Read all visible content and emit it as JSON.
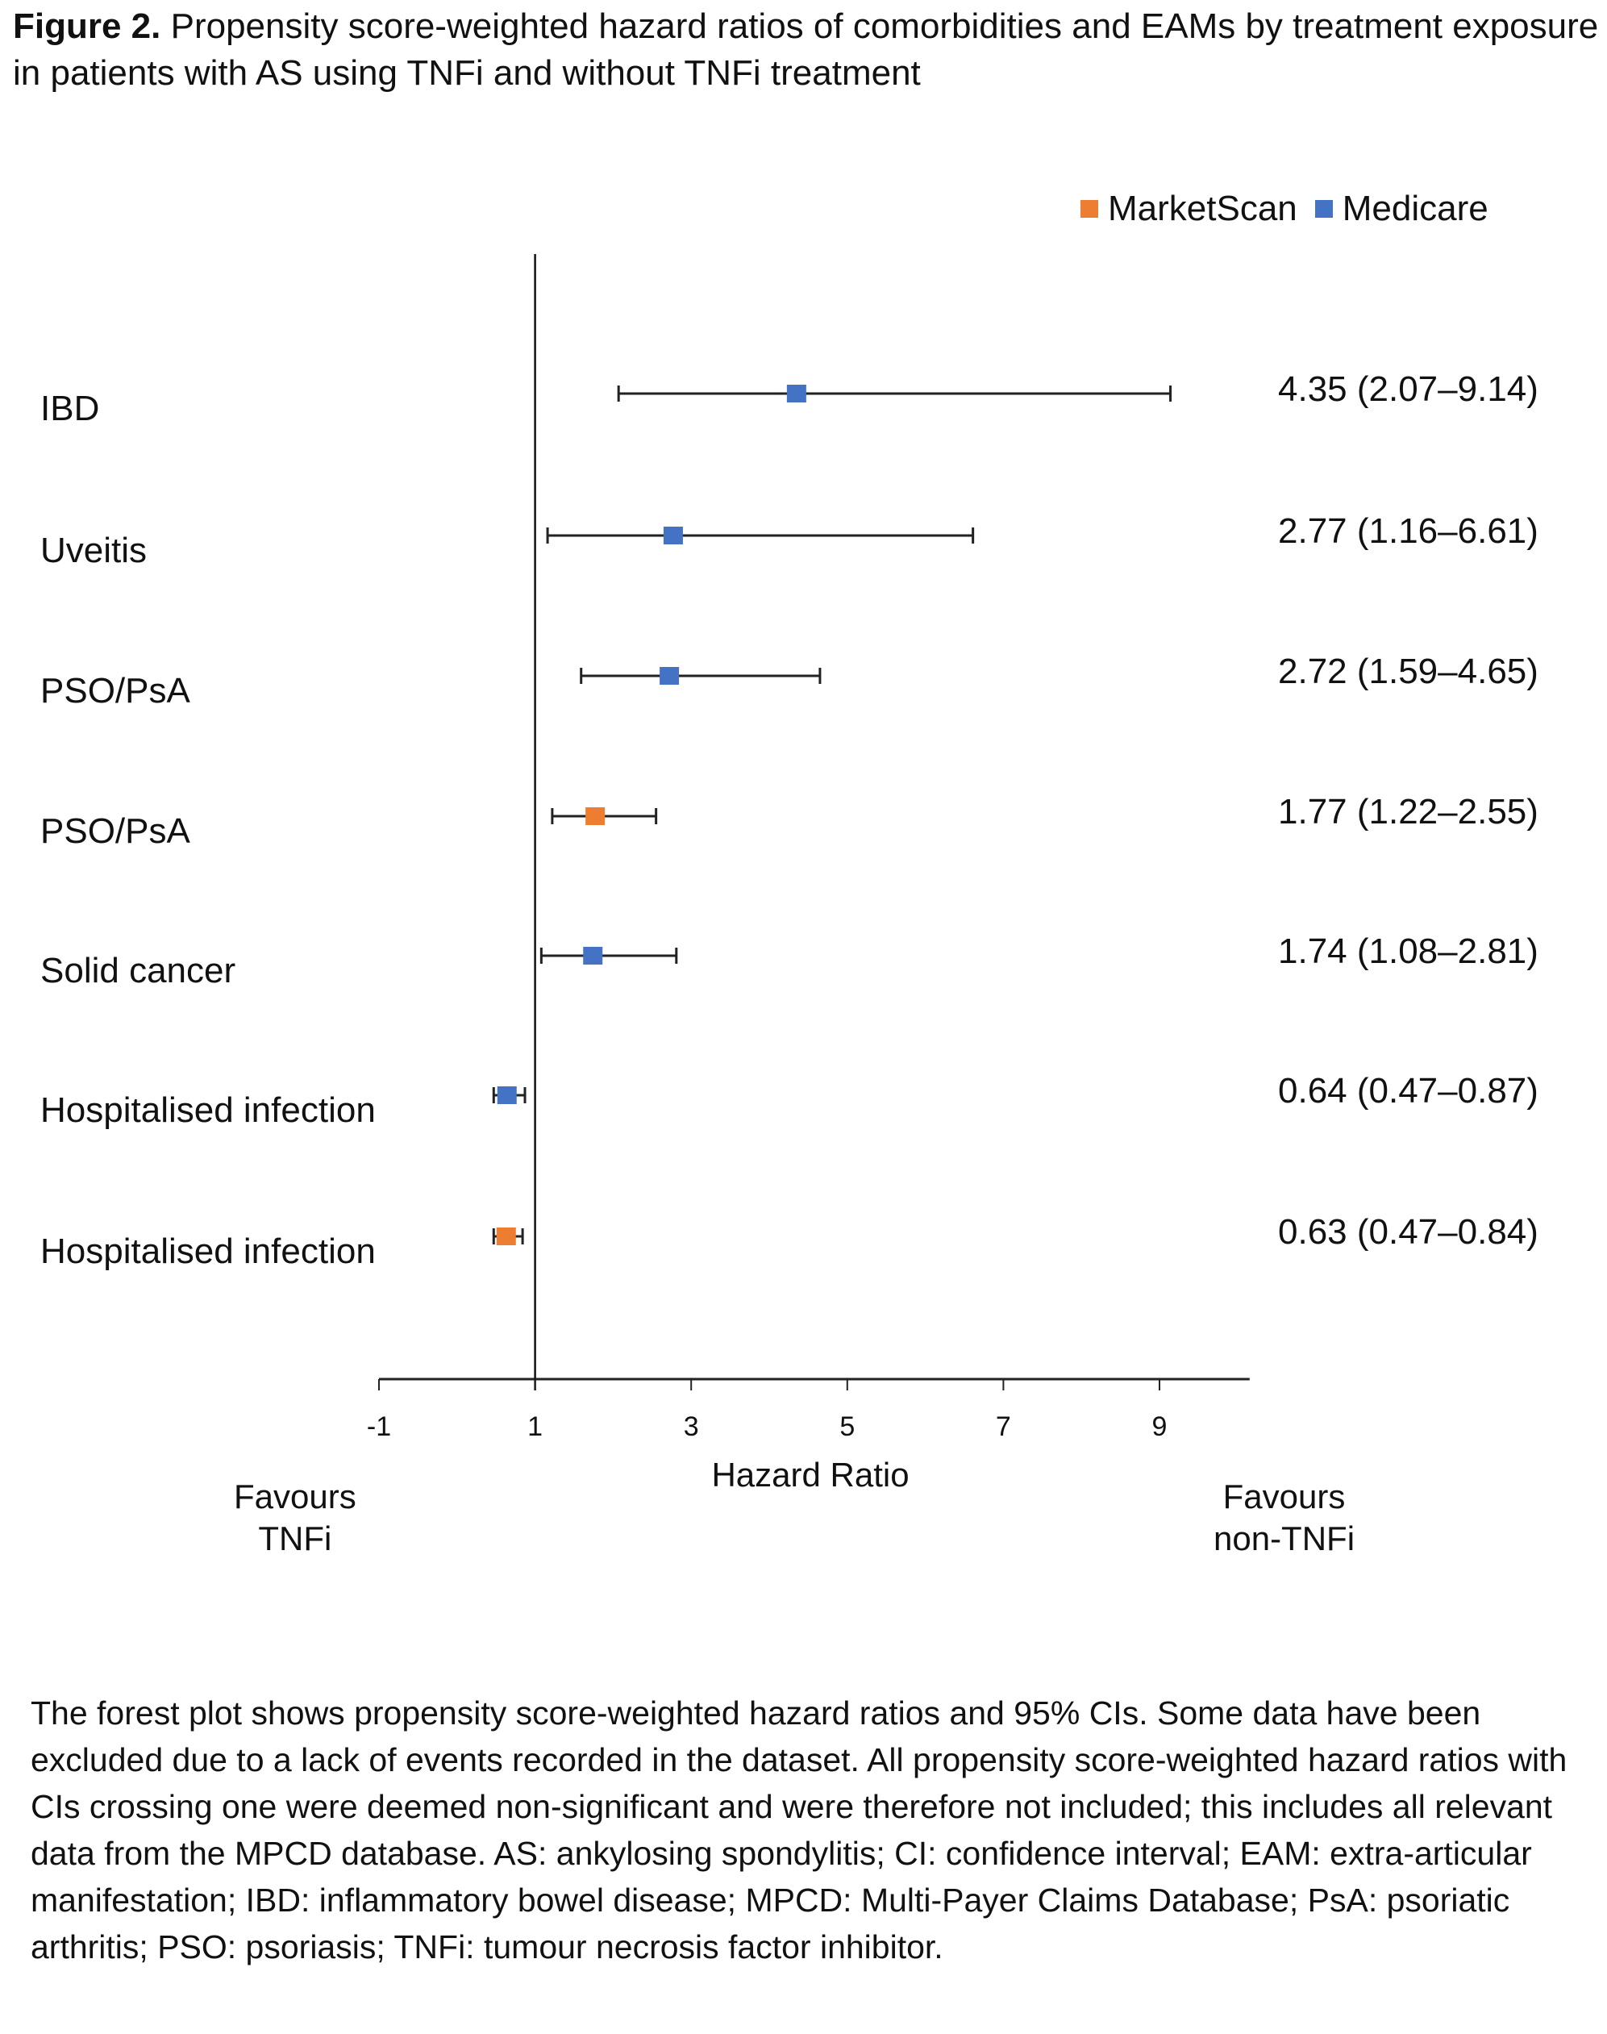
{
  "figure": {
    "label": "Figure 2.",
    "title": "Propensity score-weighted hazard ratios of comorbidities and EAMs by treatment exposure in patients with AS using TNFi and without TNFi treatment",
    "favours_left": [
      "Favours",
      "TNFi"
    ],
    "favours_right": [
      "Favours",
      "non-TNFi"
    ],
    "caption": "The forest plot shows propensity score-weighted hazard ratios and 95% CIs. Some data have been excluded due to a lack of events recorded in the dataset. All propensity score-weighted hazard ratios with CIs crossing one were deemed non-significant and were therefore not included; this includes all relevant data from the MPCD database. AS: ankylosing spondylitis; CI: confidence interval; EAM: extra-articular manifestation; IBD: inflammatory bowel disease; MPCD: Multi-Payer Claims Database; PsA: psoriatic arthritis; PSO: psoriasis; TNFi: tumour necrosis factor inhibitor."
  },
  "chart_data": {
    "type": "scatter",
    "subtype": "forest",
    "title": "Propensity score-weighted hazard ratios of comorbidities and EAMs by treatment exposure in patients with AS using TNFi and without TNFi treatment",
    "xlabel": "Hazard Ratio",
    "ylabel": "",
    "xlim": [
      -1,
      10
    ],
    "xticks": [
      -1,
      1,
      3,
      5,
      7,
      9
    ],
    "reference_line": 1,
    "grid": false,
    "legend_position": "top-right",
    "series": [
      {
        "name": "MarketScan",
        "color": "#ED7D31"
      },
      {
        "name": "Medicare",
        "color": "#4472C4"
      }
    ],
    "rows": [
      {
        "label": "IBD",
        "series": "Medicare",
        "hr": 4.35,
        "lo": 2.07,
        "hi": 9.14,
        "text": "4.35 (2.07–9.14)"
      },
      {
        "label": "Uveitis",
        "series": "Medicare",
        "hr": 2.77,
        "lo": 1.16,
        "hi": 6.61,
        "text": "2.77 (1.16–6.61)"
      },
      {
        "label": "PSO/PsA",
        "series": "Medicare",
        "hr": 2.72,
        "lo": 1.59,
        "hi": 4.65,
        "text": "2.72 (1.59–4.65)"
      },
      {
        "label": "PSO/PsA",
        "series": "MarketScan",
        "hr": 1.77,
        "lo": 1.22,
        "hi": 2.55,
        "text": "1.77 (1.22–2.55)"
      },
      {
        "label": "Solid cancer",
        "series": "Medicare",
        "hr": 1.74,
        "lo": 1.08,
        "hi": 2.81,
        "text": "1.74 (1.08–2.81)"
      },
      {
        "label": "Hospitalised infection",
        "series": "Medicare",
        "hr": 0.64,
        "lo": 0.47,
        "hi": 0.87,
        "text": "0.64 (0.47–0.87)"
      },
      {
        "label": "Hospitalised infection",
        "series": "MarketScan",
        "hr": 0.63,
        "lo": 0.47,
        "hi": 0.84,
        "text": "0.63 (0.47–0.84)"
      }
    ]
  }
}
